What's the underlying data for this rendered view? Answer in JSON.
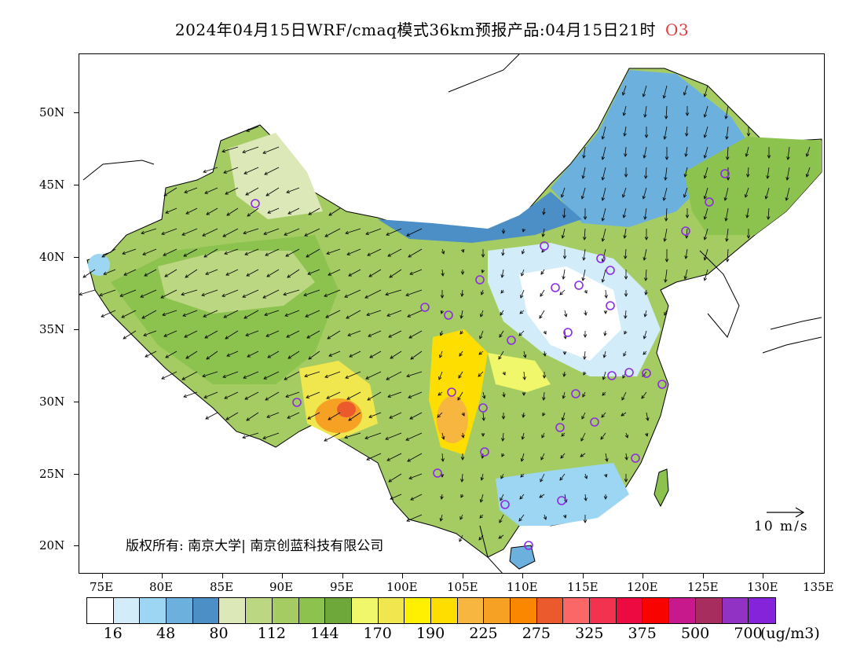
{
  "title": "2024年04月15日WRF/cmaq模式36km预报产品:04月15日21时",
  "pollutant": "O3",
  "lat_labels": [
    "50N",
    "45N",
    "40N",
    "35N",
    "30N",
    "25N",
    "20N"
  ],
  "lon_labels": [
    "75E",
    "80E",
    "85E",
    "90E",
    "95E",
    "100E",
    "105E",
    "110E",
    "115E",
    "120E",
    "125E",
    "130E",
    "135E"
  ],
  "copyright": "版权所有: 南京大学| 南京创蓝科技有限公司",
  "wind_reference": "10 m/s",
  "colorbar": {
    "colors": [
      "#ffffff",
      "#d2ecfa",
      "#9dd6f2",
      "#6cb0dd",
      "#4b8fc6",
      "#dde8b8",
      "#bcd782",
      "#a5cc63",
      "#8cc34e",
      "#6fa83a",
      "#f0f76a",
      "#f0e64e",
      "#fef000",
      "#fedd00",
      "#f7b640",
      "#f7a124",
      "#fb8600",
      "#ea5a2d",
      "#fb6766",
      "#f2324f",
      "#ed0a40",
      "#f90300",
      "#c8198c",
      "#a62d5e",
      "#9232c4",
      "#8423d9"
    ],
    "labels": [
      "16",
      "48",
      "80",
      "112",
      "144",
      "170",
      "190",
      "225",
      "275",
      "325",
      "375",
      "500",
      "700"
    ],
    "unit": "(ug/m3)"
  }
}
